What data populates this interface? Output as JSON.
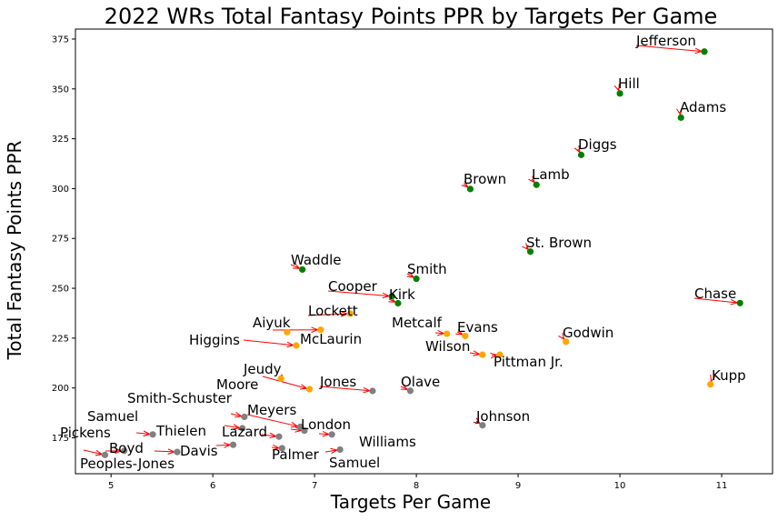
{
  "chart_data": {
    "type": "scatter",
    "title": "2022 WRs Total Fantasy Points PPR by Targets Per Game",
    "xlabel": "Targets Per Game",
    "ylabel": "Total Fantasy Points PPR",
    "xlim": [
      4.65,
      11.5
    ],
    "ylim": [
      157,
      380
    ],
    "xticks": [
      5,
      6,
      7,
      8,
      9,
      10,
      11
    ],
    "yticks": [
      175,
      200,
      225,
      250,
      275,
      300,
      325,
      350,
      375
    ],
    "grid": false,
    "colors": {
      "high": "#008000",
      "mid": "#ffa500",
      "low": "#808080",
      "arrow": "#ff0000"
    },
    "points": [
      {
        "name": "Jefferson",
        "x": 10.83,
        "y": 368.7,
        "group": "high"
      },
      {
        "name": "Hill",
        "x": 10.0,
        "y": 347.7,
        "group": "high"
      },
      {
        "name": "Adams",
        "x": 10.6,
        "y": 335.6,
        "group": "high"
      },
      {
        "name": "Diggs",
        "x": 9.62,
        "y": 316.9,
        "group": "high"
      },
      {
        "name": "Brown",
        "x": 8.53,
        "y": 299.8,
        "group": "high"
      },
      {
        "name": "Lamb",
        "x": 9.18,
        "y": 301.9,
        "group": "high"
      },
      {
        "name": "St. Brown",
        "x": 9.12,
        "y": 268.4,
        "group": "high"
      },
      {
        "name": "Waddle",
        "x": 6.88,
        "y": 259.4,
        "group": "high"
      },
      {
        "name": "Smith",
        "x": 8.0,
        "y": 254.8,
        "group": "high"
      },
      {
        "name": "Cooper",
        "x": 7.76,
        "y": 246.0,
        "group": "high"
      },
      {
        "name": "Kirk",
        "x": 7.82,
        "y": 242.5,
        "group": "high"
      },
      {
        "name": "Chase",
        "x": 11.18,
        "y": 242.6,
        "group": "high"
      },
      {
        "name": "Lockett",
        "x": 7.35,
        "y": 237.3,
        "group": "mid"
      },
      {
        "name": "Aiyuk",
        "x": 6.73,
        "y": 228.0,
        "group": "mid"
      },
      {
        "name": "McLaurin",
        "x": 7.06,
        "y": 229.2,
        "group": "mid"
      },
      {
        "name": "Higgins",
        "x": 6.82,
        "y": 221.3,
        "group": "mid"
      },
      {
        "name": "Metcalf",
        "x": 8.3,
        "y": 227.2,
        "group": "mid"
      },
      {
        "name": "Evans",
        "x": 8.48,
        "y": 226.1,
        "group": "mid"
      },
      {
        "name": "Wilson",
        "x": 8.65,
        "y": 216.7,
        "group": "mid"
      },
      {
        "name": "Pittman Jr.",
        "x": 8.82,
        "y": 216.7,
        "group": "mid"
      },
      {
        "name": "Godwin",
        "x": 9.47,
        "y": 223.2,
        "group": "mid"
      },
      {
        "name": "Kupp",
        "x": 10.89,
        "y": 201.8,
        "group": "mid"
      },
      {
        "name": "Jeudy",
        "x": 6.67,
        "y": 204.7,
        "group": "mid"
      },
      {
        "name": "Moore",
        "x": 6.95,
        "y": 199.4,
        "group": "mid"
      },
      {
        "name": "Jones",
        "x": 7.57,
        "y": 198.5,
        "group": "low"
      },
      {
        "name": "Olave",
        "x": 7.94,
        "y": 198.6,
        "group": "low"
      },
      {
        "name": "Smith-Schuster",
        "x": 6.31,
        "y": 185.5,
        "group": "low"
      },
      {
        "name": "Meyers",
        "x": 6.86,
        "y": 180.5,
        "group": "low"
      },
      {
        "name": "London",
        "x": 6.9,
        "y": 178.6,
        "group": "low"
      },
      {
        "name": "Johnson",
        "x": 8.65,
        "y": 181.3,
        "group": "low"
      },
      {
        "name": "Samuel",
        "x": 5.41,
        "y": 176.7,
        "group": "low"
      },
      {
        "name": "Thielen",
        "x": 6.29,
        "y": 179.8,
        "group": "low"
      },
      {
        "name": "Lazard",
        "x": 6.65,
        "y": 175.6,
        "group": "low"
      },
      {
        "name": "Williams",
        "x": 7.17,
        "y": 176.7,
        "group": "low"
      },
      {
        "name": "Pickens",
        "x": 4.94,
        "y": 166.4,
        "group": "low"
      },
      {
        "name": "Boyd",
        "x": 5.13,
        "y": 168.5,
        "group": "low"
      },
      {
        "name": "Peoples-Jones",
        "x": 5.65,
        "y": 167.9,
        "group": "low"
      },
      {
        "name": "Davis",
        "x": 6.2,
        "y": 171.5,
        "group": "low"
      },
      {
        "name": "Palmer",
        "x": 6.68,
        "y": 169.8,
        "group": "low"
      },
      {
        "name": "Samuel",
        "x": 7.25,
        "y": 169.1,
        "group": "low"
      }
    ]
  }
}
